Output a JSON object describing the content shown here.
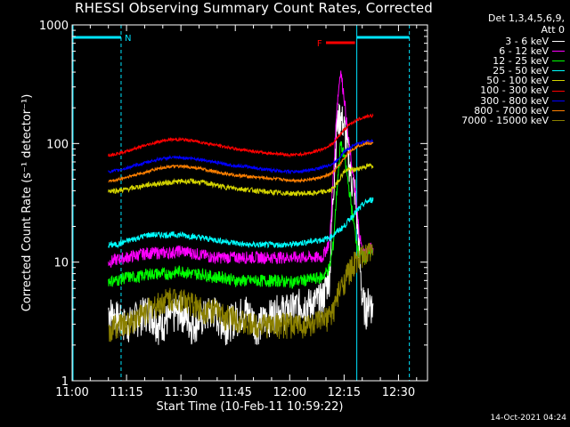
{
  "title": "RHESSI Observing Summary Count Rates, Corrected",
  "legend_header": [
    "Det 1,3,4,5,6,9,",
    "Att 0"
  ],
  "footer_date": "14-Oct-2021 04:24",
  "annotations": {
    "night_label": "N",
    "flare_label": "F"
  },
  "colors": {
    "background": "#000000",
    "axes": "#ffffff",
    "cyan_bars": "#00e5ff",
    "flare_bar": "#ff0000"
  },
  "chart_data": {
    "type": "line",
    "title": "RHESSI Observing Summary Count Rates, Corrected",
    "xlabel": "Start Time (10-Feb-11 10:59:22)",
    "ylabel": "Corrected Count Rate (s⁻¹ detector⁻¹)",
    "y_scale": "log",
    "ylim": [
      1,
      1000
    ],
    "xlim_minutes": [
      0,
      98
    ],
    "x_ticks": [
      {
        "label": "11:00",
        "t": 0
      },
      {
        "label": "11:15",
        "t": 15
      },
      {
        "label": "11:30",
        "t": 30
      },
      {
        "label": "11:45",
        "t": 45
      },
      {
        "label": "12:00",
        "t": 60
      },
      {
        "label": "12:15",
        "t": 75
      },
      {
        "label": "12:30",
        "t": 90
      }
    ],
    "y_ticks": [
      {
        "label": "1",
        "v": 1
      },
      {
        "label": "10",
        "v": 10
      },
      {
        "label": "100",
        "v": 100
      },
      {
        "label": "1000",
        "v": 1000
      }
    ],
    "legend_position": "top-right",
    "t_series": [
      10,
      12,
      15,
      18,
      21,
      24,
      27,
      30,
      33,
      36,
      39,
      42,
      45,
      48,
      51,
      54,
      57,
      60,
      63,
      66,
      69,
      71,
      72,
      73,
      74,
      75,
      76,
      77,
      78,
      79,
      80,
      81,
      82,
      83
    ],
    "series": [
      {
        "name": "3 - 6 keV",
        "color": "#ffffff",
        "noise": 0.35,
        "values": [
          4,
          3.5,
          3,
          3.5,
          4,
          3,
          3.5,
          4,
          3,
          3.5,
          4,
          3,
          3.5,
          4,
          3,
          3.5,
          4,
          4,
          4.5,
          4.5,
          5,
          8,
          40,
          140,
          180,
          140,
          90,
          50,
          40,
          15,
          5,
          4,
          5,
          4
        ]
      },
      {
        "name": "6 - 12 keV",
        "color": "#ff00ff",
        "noise": 0.12,
        "values": [
          10,
          10.5,
          11,
          11.5,
          12,
          12,
          12,
          12.5,
          12,
          11.5,
          11,
          11,
          11,
          11,
          11,
          11,
          11,
          11,
          11,
          11,
          11,
          15,
          50,
          200,
          420,
          250,
          120,
          70,
          40,
          20,
          12,
          12,
          13,
          13
        ]
      },
      {
        "name": "12 - 25 keV",
        "color": "#00ff00",
        "noise": 0.12,
        "values": [
          7,
          7,
          7.5,
          7.5,
          8,
          8,
          8,
          8.5,
          8,
          8,
          7.5,
          7.5,
          7,
          7,
          7,
          7,
          7,
          6.8,
          7,
          7.2,
          7.5,
          9,
          14,
          40,
          100,
          80,
          50,
          30,
          18,
          12,
          11,
          11,
          12,
          12
        ]
      },
      {
        "name": "25 - 50 keV",
        "color": "#00ffff",
        "noise": 0.06,
        "values": [
          14,
          14,
          15,
          16,
          17,
          17,
          17,
          17,
          16.5,
          16,
          15.5,
          15,
          14.5,
          14,
          14,
          14,
          14,
          14,
          14.5,
          15,
          15.5,
          16,
          17,
          18,
          19,
          20,
          22,
          24,
          26,
          28,
          30,
          32,
          33,
          34
        ]
      },
      {
        "name": "50 - 100 keV",
        "color": "#d4d400",
        "noise": 0.05,
        "values": [
          40,
          40,
          41,
          43,
          45,
          46,
          47,
          48,
          48,
          47,
          45,
          43,
          42,
          41,
          40,
          39,
          38.5,
          38,
          38,
          38,
          39,
          40,
          42,
          46,
          52,
          58,
          60,
          60,
          60,
          62,
          63,
          64,
          65,
          65
        ]
      },
      {
        "name": "100 - 300 keV",
        "color": "#ff0000",
        "noise": 0.03,
        "values": [
          80,
          82,
          86,
          92,
          98,
          104,
          108,
          108,
          106,
          102,
          98,
          94,
          90,
          88,
          85,
          83,
          82,
          80,
          81,
          84,
          90,
          96,
          100,
          110,
          120,
          130,
          140,
          148,
          155,
          160,
          165,
          168,
          170,
          172
        ]
      },
      {
        "name": "300 - 800 keV",
        "color": "#0000ff",
        "noise": 0.03,
        "values": [
          58,
          59,
          62,
          66,
          70,
          74,
          76,
          76,
          75,
          73,
          70,
          67,
          65,
          64,
          62,
          60,
          59,
          58,
          58,
          60,
          63,
          66,
          68,
          72,
          78,
          85,
          90,
          94,
          98,
          100,
          102,
          104,
          105,
          105
        ]
      },
      {
        "name": "800 - 7000 keV",
        "color": "#ff8000",
        "noise": 0.03,
        "values": [
          48,
          49,
          52,
          55,
          58,
          62,
          64,
          64,
          63,
          61,
          58,
          56,
          54,
          53,
          52,
          51,
          50,
          49,
          49,
          50,
          52,
          55,
          57,
          62,
          68,
          75,
          82,
          88,
          92,
          96,
          98,
          100,
          100,
          100
        ]
      },
      {
        "name": "7000 - 15000 keV",
        "color": "#8b8000",
        "noise": 0.25,
        "values": [
          2.5,
          3,
          3,
          3.5,
          4,
          4.5,
          5,
          5,
          4.5,
          4,
          4,
          3.5,
          3.5,
          3,
          3,
          3,
          3,
          3,
          3,
          3,
          3.2,
          3.5,
          4,
          5,
          6,
          7,
          8,
          9,
          10,
          10.5,
          11,
          11.5,
          12,
          12
        ]
      }
    ]
  }
}
